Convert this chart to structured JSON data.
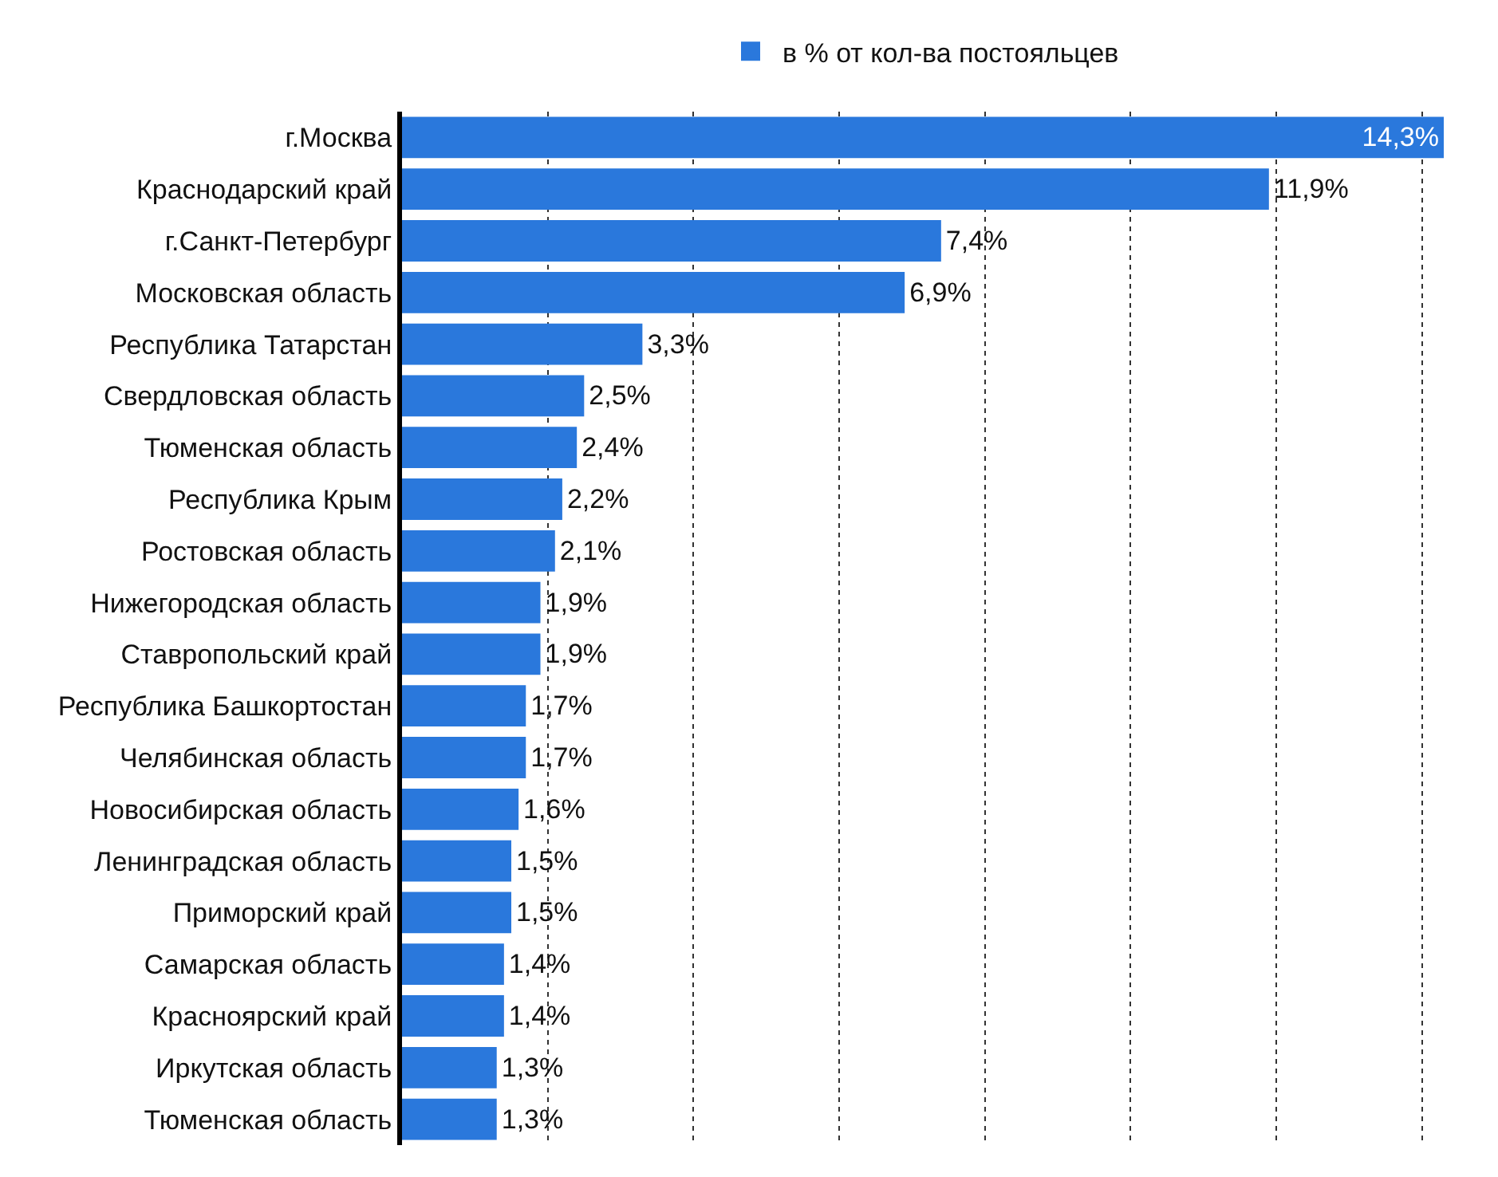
{
  "chart_data": {
    "type": "bar",
    "orientation": "horizontal",
    "categories": [
      "г.Москва",
      "Краснодарский край",
      "г.Санкт-Петербург",
      "Московская область",
      "Республика Татарстан",
      "Свердловская область",
      "Тюменская область",
      "Республика Крым",
      "Ростовская область",
      "Нижегородская область",
      "Ставропольский край",
      "Республика Башкортостан",
      "Челябинская область",
      "Новосибирская область",
      "Ленинградская область",
      "Приморский край",
      "Самарская область",
      "Красноярский край",
      "Иркутская область",
      "Тюменская область"
    ],
    "series": [
      {
        "name": "в % от кол-ва постояльцев",
        "color": "#2a78dc",
        "values": [
          14.3,
          11.9,
          7.4,
          6.9,
          3.3,
          2.5,
          2.4,
          2.2,
          2.1,
          1.9,
          1.9,
          1.7,
          1.7,
          1.6,
          1.5,
          1.5,
          1.4,
          1.4,
          1.3,
          1.3
        ],
        "value_labels": [
          "14,3%",
          "11,9%",
          "7,4%",
          "6,9%",
          "3,3%",
          "2,5%",
          "2,4%",
          "2,2%",
          "2,1%",
          "1,9%",
          "1,9%",
          "1,7%",
          "1,7%",
          "1,6%",
          "1,5%",
          "1,5%",
          "1,4%",
          "1,4%",
          "1,3%",
          "1,3%"
        ]
      }
    ],
    "xlim": [
      0,
      14.3
    ],
    "xticks": [
      {
        "value": 2,
        "label": null
      },
      {
        "value": 4,
        "label": null
      },
      {
        "value": 6,
        "label": null
      },
      {
        "value": 8,
        "label": null
      },
      {
        "value": 10,
        "label": null
      },
      {
        "value": 12,
        "label": null
      },
      {
        "value": 14,
        "label": null
      }
    ],
    "tick_labels": "y",
    "grid": "x",
    "legend": "top"
  }
}
